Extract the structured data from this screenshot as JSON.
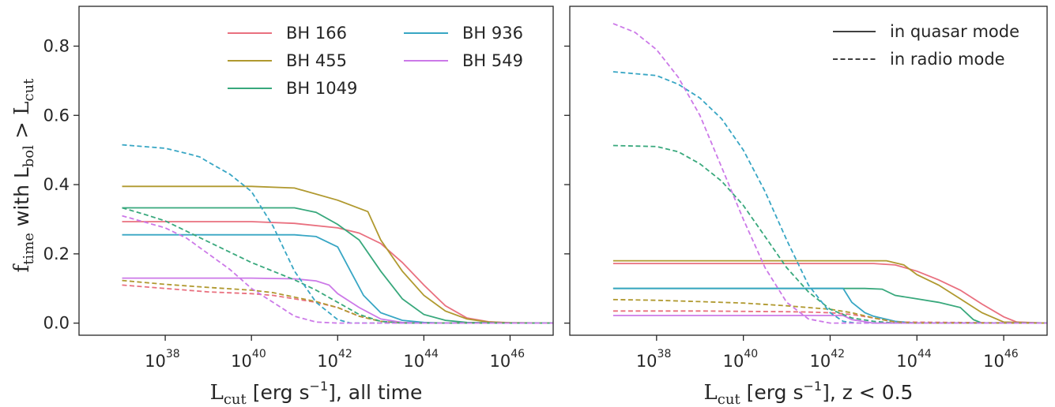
{
  "chart_data": [
    {
      "type": "line",
      "xscale": "log",
      "xlim": [
        1e+36,
        1e+47
      ],
      "ylim": [
        -0.035,
        0.915
      ],
      "xticks": [
        "10^38",
        "10^40",
        "10^42",
        "10^44",
        "10^46"
      ],
      "yticks": [
        "0.0",
        "0.2",
        "0.4",
        "0.6",
        "0.8"
      ],
      "ylabel": {
        "base": "f",
        "sub": "time",
        "mid": " with L",
        "sub2": "bol",
        "rest": " > L",
        "sub3": "cut"
      },
      "xlabel": {
        "base": "L",
        "sub": "cut",
        "rest": " [erg s",
        "sup": "−1",
        "tail": "], all time"
      },
      "legend": {
        "placement": "top",
        "entries": [
          "BH 166",
          "BH 455",
          "BH 1049",
          "BH 936",
          "BH 549"
        ]
      },
      "series": [
        {
          "name": "BH 166",
          "color": "#e9707f",
          "style": "solid",
          "x": [
            37,
            40,
            41,
            42,
            42.5,
            43,
            43.5,
            44,
            44.5,
            45,
            45.5,
            46,
            47
          ],
          "y": [
            0.293,
            0.293,
            0.288,
            0.275,
            0.26,
            0.23,
            0.175,
            0.11,
            0.05,
            0.015,
            0.004,
            0.001,
            0.0
          ]
        },
        {
          "name": "BH 455",
          "color": "#b0992f",
          "style": "solid",
          "x": [
            37,
            40,
            41,
            42,
            42.7,
            43,
            43.5,
            44,
            44.5,
            45,
            45.5,
            46,
            47
          ],
          "y": [
            0.395,
            0.395,
            0.39,
            0.355,
            0.322,
            0.24,
            0.15,
            0.08,
            0.035,
            0.012,
            0.003,
            0.001,
            0.0
          ]
        },
        {
          "name": "BH 1049",
          "color": "#38a87c",
          "style": "solid",
          "x": [
            37,
            41,
            41.5,
            42,
            42.5,
            43,
            43.5,
            44,
            44.5,
            45,
            46,
            47
          ],
          "y": [
            0.333,
            0.333,
            0.32,
            0.285,
            0.24,
            0.15,
            0.07,
            0.025,
            0.008,
            0.002,
            0.0,
            0.0
          ]
        },
        {
          "name": "BH 936",
          "color": "#38a6c4",
          "style": "solid",
          "x": [
            37,
            41,
            41.5,
            42,
            42.3,
            42.6,
            43,
            43.5,
            44,
            44.5,
            45,
            47
          ],
          "y": [
            0.255,
            0.255,
            0.25,
            0.22,
            0.15,
            0.08,
            0.03,
            0.008,
            0.002,
            0.0,
            0.0,
            0.0
          ]
        },
        {
          "name": "BH 549",
          "color": "#cc79e8",
          "style": "solid",
          "x": [
            37,
            40,
            41,
            41.5,
            41.8,
            42,
            42.5,
            43,
            43.5,
            44,
            47
          ],
          "y": [
            0.13,
            0.13,
            0.128,
            0.122,
            0.11,
            0.085,
            0.045,
            0.012,
            0.002,
            0.0,
            0.0
          ]
        },
        {
          "name": "BH 166",
          "color": "#e9707f",
          "style": "dashed",
          "x": [
            37,
            38,
            39,
            40,
            40.5,
            41,
            41.5,
            42,
            42.5,
            43,
            43.5,
            47
          ],
          "y": [
            0.11,
            0.1,
            0.09,
            0.085,
            0.08,
            0.07,
            0.06,
            0.045,
            0.02,
            0.005,
            0.0,
            0.0
          ]
        },
        {
          "name": "BH 455",
          "color": "#b0992f",
          "style": "dashed",
          "x": [
            37,
            38,
            39,
            40,
            40.5,
            41,
            41.5,
            42,
            42.5,
            43,
            43.5,
            47
          ],
          "y": [
            0.123,
            0.112,
            0.103,
            0.095,
            0.088,
            0.075,
            0.062,
            0.045,
            0.02,
            0.005,
            0.0,
            0.0
          ]
        },
        {
          "name": "BH 1049",
          "color": "#38a87c",
          "style": "dashed",
          "x": [
            37,
            37.5,
            38,
            38.5,
            39,
            39.5,
            40,
            41,
            41.5,
            42,
            42.5,
            43,
            43.5,
            47
          ],
          "y": [
            0.333,
            0.315,
            0.295,
            0.265,
            0.235,
            0.205,
            0.175,
            0.125,
            0.095,
            0.06,
            0.025,
            0.005,
            0.0,
            0.0
          ]
        },
        {
          "name": "BH 936",
          "color": "#38a6c4",
          "style": "dashed",
          "x": [
            37,
            38,
            38.5,
            38.8,
            39,
            39.5,
            40,
            40.5,
            41,
            41.5,
            42,
            42.3,
            47
          ],
          "y": [
            0.515,
            0.505,
            0.49,
            0.48,
            0.465,
            0.43,
            0.38,
            0.28,
            0.15,
            0.06,
            0.01,
            0.0,
            0.0
          ]
        },
        {
          "name": "BH 549",
          "color": "#cc79e8",
          "style": "dashed",
          "x": [
            37,
            38,
            38.5,
            39,
            39.5,
            40,
            40.5,
            41,
            41.5,
            42,
            47
          ],
          "y": [
            0.31,
            0.275,
            0.245,
            0.2,
            0.155,
            0.1,
            0.06,
            0.02,
            0.003,
            0.0,
            0.0
          ]
        }
      ]
    },
    {
      "type": "line",
      "xscale": "log",
      "xlim": [
        1e+36,
        1e+47
      ],
      "ylim": [
        -0.035,
        0.915
      ],
      "xticks": [
        "10^38",
        "10^40",
        "10^42",
        "10^44",
        "10^46"
      ],
      "yticks": [
        "0.0",
        "0.2",
        "0.4",
        "0.6",
        "0.8"
      ],
      "xlabel": {
        "base": "L",
        "sub": "cut",
        "rest": " [erg s",
        "sup": "−1",
        "tail": "], z < 0.5"
      },
      "legend": {
        "placement": "top-right",
        "entries": [
          {
            "label": "in quasar mode",
            "style": "solid"
          },
          {
            "label": "in radio mode",
            "style": "dashed"
          }
        ]
      },
      "series": [
        {
          "name": "BH 166",
          "color": "#e9707f",
          "style": "solid",
          "x": [
            37,
            43,
            43.5,
            44,
            44.5,
            45,
            45.5,
            46,
            46.3,
            47
          ],
          "y": [
            0.172,
            0.172,
            0.168,
            0.15,
            0.125,
            0.095,
            0.055,
            0.018,
            0.003,
            0.0
          ]
        },
        {
          "name": "BH 455",
          "color": "#b0992f",
          "style": "solid",
          "x": [
            37,
            43.3,
            43.7,
            44,
            44.5,
            45,
            45.5,
            46,
            47
          ],
          "y": [
            0.18,
            0.18,
            0.168,
            0.14,
            0.11,
            0.07,
            0.03,
            0.003,
            0.0
          ]
        },
        {
          "name": "BH 1049",
          "color": "#38a87c",
          "style": "solid",
          "x": [
            37,
            42.8,
            43.2,
            43.5,
            44,
            44.5,
            45,
            45.3,
            45.5,
            47
          ],
          "y": [
            0.1,
            0.1,
            0.098,
            0.08,
            0.07,
            0.06,
            0.045,
            0.01,
            0.0,
            0.0
          ]
        },
        {
          "name": "BH 936",
          "color": "#38a6c4",
          "style": "solid",
          "x": [
            37,
            42.3,
            42.5,
            42.8,
            43,
            43.5,
            44,
            47
          ],
          "y": [
            0.1,
            0.1,
            0.06,
            0.03,
            0.02,
            0.005,
            0.0,
            0.0
          ]
        },
        {
          "name": "BH 549",
          "color": "#cc79e8",
          "style": "solid",
          "x": [
            37,
            42.3,
            42.5,
            43,
            47
          ],
          "y": [
            0.022,
            0.022,
            0.01,
            0.0,
            0.0
          ]
        },
        {
          "name": "BH 166",
          "color": "#e9707f",
          "style": "dashed",
          "x": [
            37,
            39,
            41,
            41.5,
            42,
            42.5,
            43,
            43.5,
            47
          ],
          "y": [
            0.035,
            0.035,
            0.033,
            0.032,
            0.03,
            0.025,
            0.015,
            0.003,
            0.0
          ]
        },
        {
          "name": "BH 455",
          "color": "#b0992f",
          "style": "dashed",
          "x": [
            37,
            38,
            39,
            40,
            41,
            41.5,
            42,
            42.5,
            43,
            43.5,
            44,
            47
          ],
          "y": [
            0.068,
            0.066,
            0.062,
            0.058,
            0.05,
            0.045,
            0.04,
            0.03,
            0.015,
            0.003,
            0.0,
            0.0
          ]
        },
        {
          "name": "BH 1049",
          "color": "#38a87c",
          "style": "dashed",
          "x": [
            37,
            38,
            38.5,
            39,
            39.5,
            40,
            40.5,
            41,
            41.5,
            42,
            42.5,
            43,
            43.5,
            47
          ],
          "y": [
            0.513,
            0.51,
            0.495,
            0.46,
            0.41,
            0.34,
            0.25,
            0.16,
            0.09,
            0.04,
            0.015,
            0.005,
            0.0,
            0.0
          ]
        },
        {
          "name": "BH 936",
          "color": "#38a6c4",
          "style": "dashed",
          "x": [
            37,
            38,
            38.5,
            39,
            39.5,
            40,
            40.5,
            41,
            41.5,
            42,
            42.3,
            42.6,
            47
          ],
          "y": [
            0.726,
            0.715,
            0.69,
            0.65,
            0.59,
            0.5,
            0.38,
            0.24,
            0.11,
            0.03,
            0.005,
            0.0,
            0.0
          ]
        },
        {
          "name": "BH 549",
          "color": "#cc79e8",
          "style": "dashed",
          "x": [
            37,
            37.5,
            38,
            38.5,
            39,
            39.5,
            40,
            40.5,
            41,
            41.5,
            42,
            47
          ],
          "y": [
            0.865,
            0.84,
            0.79,
            0.71,
            0.6,
            0.45,
            0.3,
            0.16,
            0.06,
            0.012,
            0.0,
            0.0
          ]
        }
      ]
    }
  ]
}
